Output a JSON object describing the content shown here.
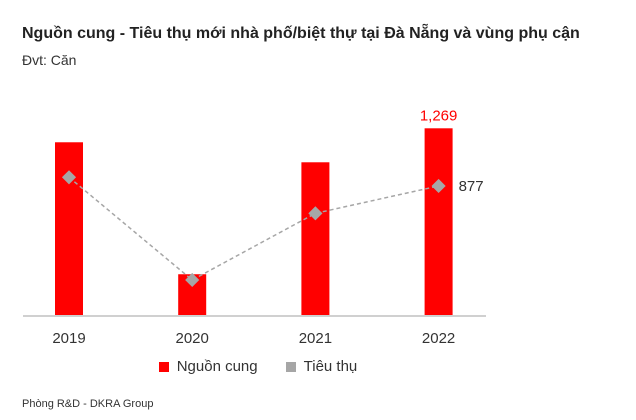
{
  "title": "Nguồn cung - Tiêu thụ mới nhà phố/biệt thự tại Đà Nẵng và vùng phụ cận",
  "unit": "Đvt: Căn",
  "footer": "Phòng R&D - DKRA Group",
  "chart_data": {
    "type": "bar",
    "title": "Nguồn cung - Tiêu thụ mới nhà phố/biệt thự tại Đà Nẵng và vùng phụ cận",
    "categories": [
      "2019",
      "2020",
      "2021",
      "2022"
    ],
    "series": [
      {
        "name": "Nguồn cung",
        "type": "bar",
        "color": "#ff0000",
        "values": [
          1174,
          277,
          1038,
          1269
        ],
        "data_labels": {
          "3": "1,269"
        }
      },
      {
        "name": "Tiêu thụ",
        "type": "line",
        "style": "dashed",
        "marker": "diamond",
        "color": "#a6a6a6",
        "values": [
          936,
          238,
          691,
          877
        ],
        "data_labels": {
          "3": "877"
        }
      }
    ],
    "ylim": [
      0,
      1269
    ],
    "grid": false,
    "legend": "bottom"
  }
}
